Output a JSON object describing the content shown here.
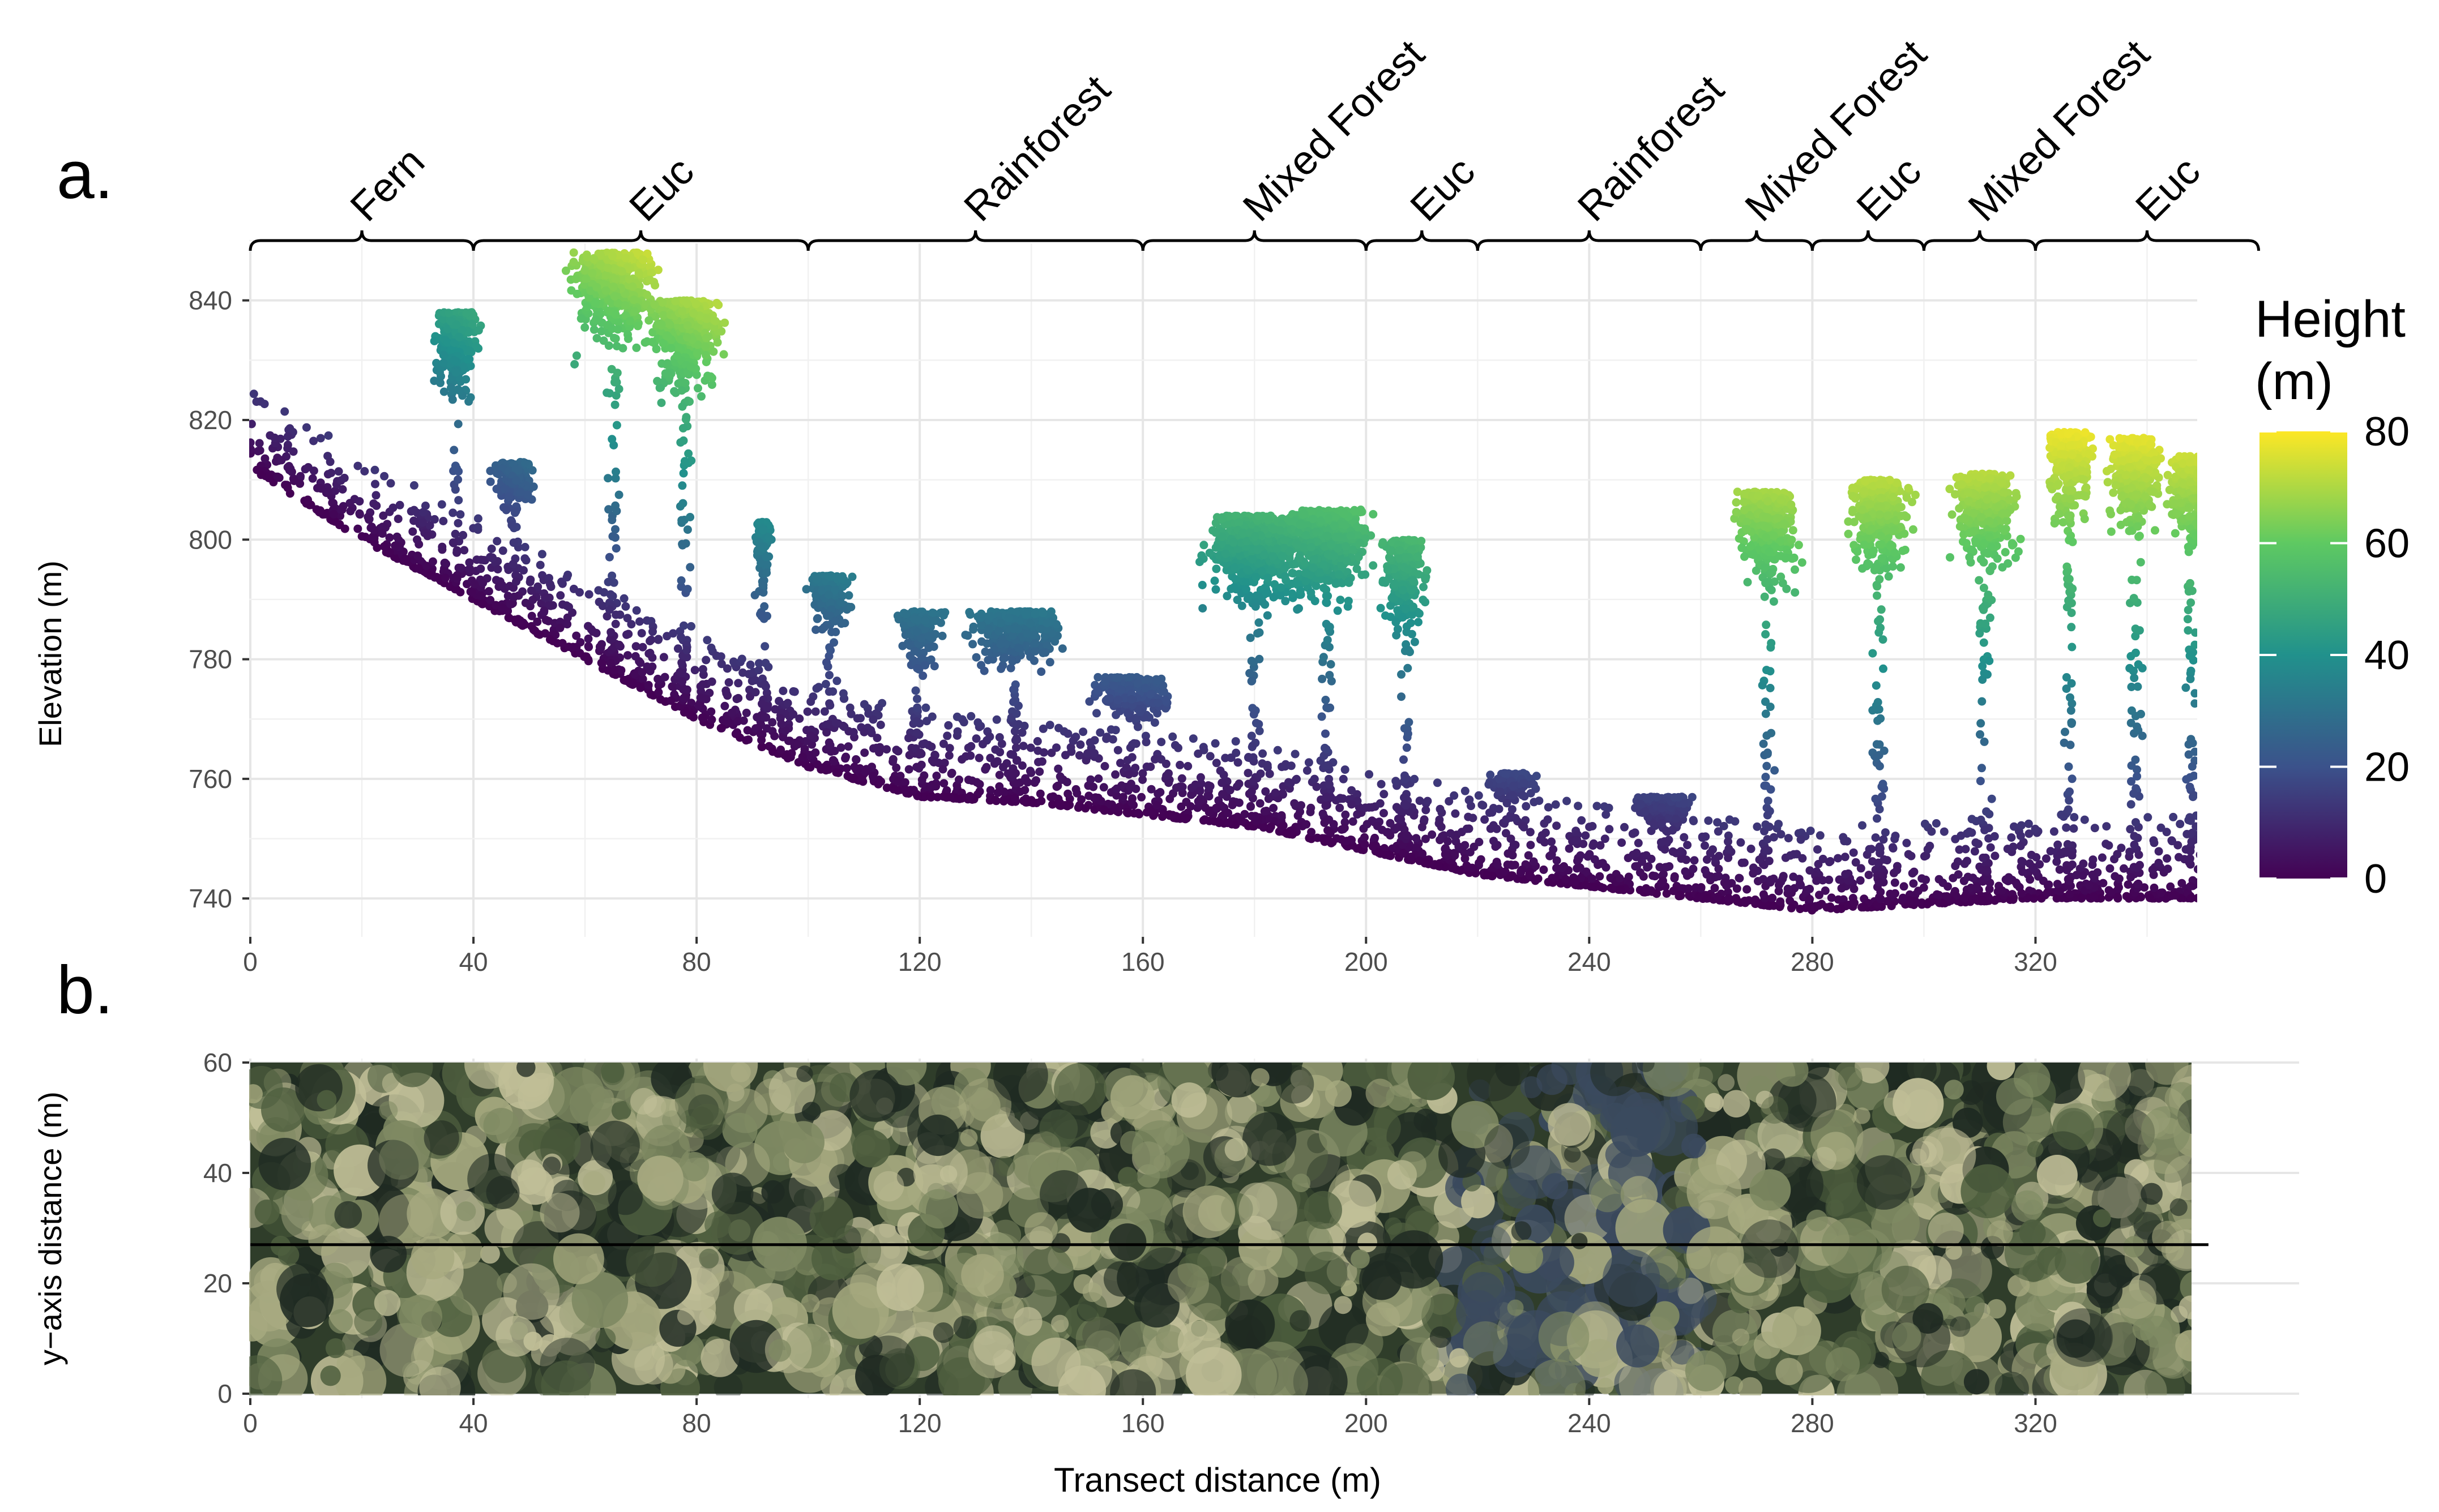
{
  "figure": {
    "panel_a_label": "a.",
    "panel_b_label": "b."
  },
  "chart_data": [
    {
      "panel": "a",
      "type": "scatter",
      "title": "",
      "xlabel": "",
      "ylabel": "Elevation (m)",
      "xlim": [
        0,
        350
      ],
      "ylim": [
        735,
        850
      ],
      "x_ticks": [
        0,
        40,
        80,
        120,
        160,
        200,
        240,
        280,
        320
      ],
      "y_ticks": [
        740,
        760,
        780,
        800,
        820,
        840
      ],
      "grid": true,
      "colorbar": {
        "title_line1": "Height",
        "title_line2": "(m)",
        "range": [
          0,
          80
        ],
        "ticks": [
          0,
          20,
          40,
          60,
          80
        ],
        "colormap": "viridis",
        "colors": [
          "#440154",
          "#3b528b",
          "#21918c",
          "#5ec962",
          "#fde725"
        ]
      },
      "vegetation_segments": [
        {
          "label": "Fern",
          "start": 0,
          "end": 40
        },
        {
          "label": "Euc",
          "start": 40,
          "end": 100
        },
        {
          "label": "Rainforest",
          "start": 100,
          "end": 160
        },
        {
          "label": "Mixed Forest",
          "start": 160,
          "end": 200
        },
        {
          "label": "Euc",
          "start": 200,
          "end": 220
        },
        {
          "label": "Rainforest",
          "start": 220,
          "end": 260
        },
        {
          "label": "Mixed Forest",
          "start": 260,
          "end": 280
        },
        {
          "label": "Euc",
          "start": 280,
          "end": 300
        },
        {
          "label": "Mixed Forest",
          "start": 300,
          "end": 320
        },
        {
          "label": "Euc",
          "start": 320,
          "end": 360
        }
      ],
      "ground_profile": {
        "x": [
          0,
          20,
          40,
          60,
          80,
          100,
          120,
          140,
          160,
          180,
          200,
          220,
          240,
          260,
          280,
          300,
          320,
          340,
          350
        ],
        "elevation": [
          812,
          800,
          790,
          780,
          770,
          762,
          757,
          756,
          754,
          752,
          748,
          744,
          742,
          740,
          738,
          739,
          740,
          740,
          740
        ]
      },
      "tree_crowns": [
        {
          "x": 47,
          "top": 813,
          "width": 10
        },
        {
          "x": 65,
          "top": 848,
          "width": 18
        },
        {
          "x": 78,
          "top": 840,
          "width": 16
        },
        {
          "x": 37,
          "top": 838,
          "width": 10
        },
        {
          "x": 92,
          "top": 803,
          "width": 4
        },
        {
          "x": 104,
          "top": 794,
          "width": 10
        },
        {
          "x": 120,
          "top": 788,
          "width": 10
        },
        {
          "x": 137,
          "top": 788,
          "width": 20
        },
        {
          "x": 158,
          "top": 777,
          "width": 18
        },
        {
          "x": 180,
          "top": 804,
          "width": 22
        },
        {
          "x": 193,
          "top": 805,
          "width": 20
        },
        {
          "x": 207,
          "top": 800,
          "width": 10
        },
        {
          "x": 226,
          "top": 761,
          "width": 12
        },
        {
          "x": 253,
          "top": 757,
          "width": 14
        },
        {
          "x": 272,
          "top": 808,
          "width": 14
        },
        {
          "x": 292,
          "top": 810,
          "width": 14
        },
        {
          "x": 311,
          "top": 811,
          "width": 14
        },
        {
          "x": 326,
          "top": 818,
          "width": 10
        },
        {
          "x": 338,
          "top": 817,
          "width": 12
        },
        {
          "x": 348,
          "top": 814,
          "width": 10
        }
      ]
    },
    {
      "panel": "b",
      "type": "image",
      "title": "",
      "xlabel": "Transect distance (m)",
      "ylabel": "y−axis distance (m)",
      "xlim": [
        0,
        350
      ],
      "ylim": [
        0,
        60
      ],
      "x_ticks": [
        0,
        40,
        80,
        120,
        160,
        200,
        240,
        280,
        320
      ],
      "y_ticks": [
        0,
        20,
        40,
        60
      ],
      "grid": true,
      "transect_line_y": 27,
      "image_colors": [
        "#2f3d2a",
        "#4f5f3f",
        "#7f8a63",
        "#a6a97f",
        "#c1bf98",
        "#3b4a5e",
        "#1f2a22"
      ]
    }
  ]
}
